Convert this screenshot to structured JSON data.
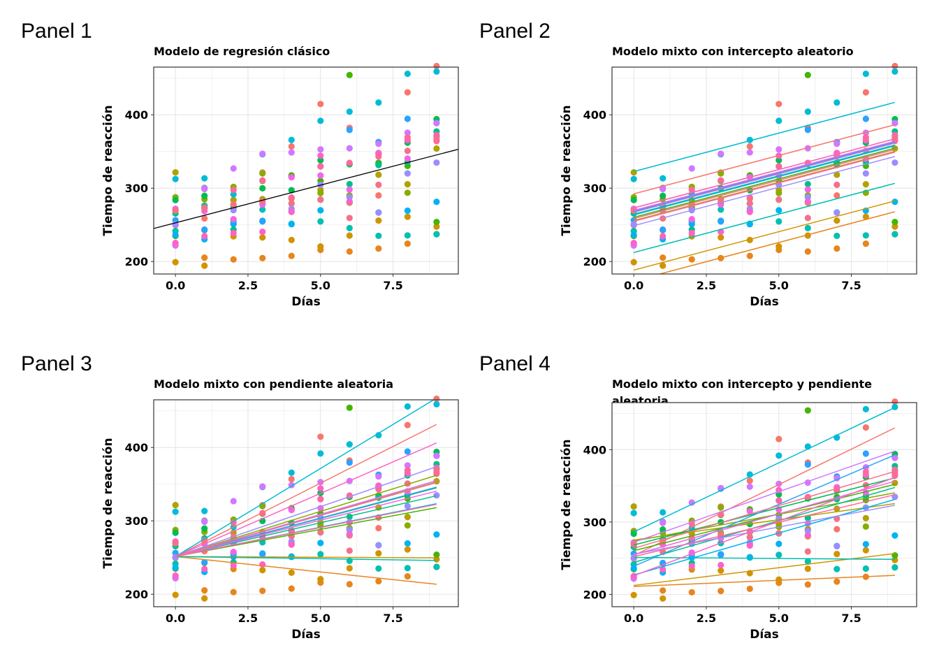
{
  "chart_data": [
    {
      "type": "scatter",
      "panel_label": "Panel 1",
      "title": "Modelo de regresión clásico",
      "xlabel": "Días",
      "ylabel": "Tiempo de reacción",
      "xlim": [
        -0.75,
        9.75
      ],
      "ylim": [
        183,
        465
      ],
      "xticks": [
        0,
        2.5,
        5,
        7.5
      ],
      "xtick_labels": [
        "0.0",
        "2.5",
        "5.0",
        "7.5"
      ],
      "yticks": [
        200,
        300,
        400
      ],
      "ytick_labels": [
        "200",
        "300",
        "400"
      ],
      "grid": true,
      "legend": "none",
      "points_note": "18 subjects x 10 days, colored by subject",
      "lines": [
        {
          "x": [
            -0.75,
            9.75
          ],
          "y": [
            245,
            353
          ],
          "color": "#000000"
        }
      ]
    },
    {
      "type": "scatter",
      "panel_label": "Panel 2",
      "title": "Modelo mixto con intercepto aleatorio",
      "xlabel": "Días",
      "ylabel": "Tiempo de reacción",
      "xlim": [
        -0.75,
        9.75
      ],
      "ylim": [
        183,
        465
      ],
      "xticks": [
        0,
        2.5,
        5,
        7.5
      ],
      "xtick_labels": [
        "0.0",
        "2.5",
        "5.0",
        "7.5"
      ],
      "yticks": [
        200,
        300,
        400
      ],
      "ytick_labels": [
        "200",
        "300",
        "400"
      ],
      "grid": true,
      "legend": "none",
      "model": "random_intercept",
      "slope": 10.47,
      "intercepts": [
        292.2,
        173.6,
        188.3,
        255.8,
        273.0,
        260.3,
        268.2,
        264.5,
        212.3,
        322.7,
        263.5,
        268.7,
        248.9,
        267.0,
        269.7,
        273.0,
        254.8,
        258.5
      ]
    },
    {
      "type": "scatter",
      "panel_label": "Panel 3",
      "title": "Modelo mixto con pendiente aleatoria",
      "xlabel": "Días",
      "ylabel": "Tiempo de reacción",
      "xlim": [
        -0.75,
        9.75
      ],
      "ylim": [
        183,
        465
      ],
      "xticks": [
        0,
        2.5,
        5,
        7.5
      ],
      "xtick_labels": [
        "0.0",
        "2.5",
        "5.0",
        "7.5"
      ],
      "yticks": [
        200,
        300,
        400
      ],
      "ytick_labels": [
        "200",
        "300",
        "400"
      ],
      "grid": true,
      "legend": "none",
      "model": "random_slope",
      "common_intercept": 251.4,
      "slopes": [
        20.0,
        -4.2,
        -0.2,
        11.3,
        12.3,
        7.4,
        10.4,
        9.2,
        -0.6,
        24.0,
        8.0,
        10.5,
        13.6,
        11.5,
        9.9,
        17.2,
        7.9,
        11.2
      ]
    },
    {
      "type": "scatter",
      "panel_label": "Panel 4",
      "title": "Modelo mixto con intercepto y pendiente\n aleatoria",
      "xlabel": "Días",
      "ylabel": "Tiempo de reacción",
      "xlim": [
        -0.75,
        9.75
      ],
      "ylim": [
        183,
        465
      ],
      "xticks": [
        0,
        2.5,
        5,
        7.5
      ],
      "xtick_labels": [
        "0.0",
        "2.5",
        "5.0",
        "7.5"
      ],
      "yticks": [
        200,
        300,
        400
      ],
      "ytick_labels": [
        "200",
        "300",
        "400"
      ],
      "grid": true,
      "legend": "none",
      "model": "random_intercept_and_slope",
      "intercepts": [
        253.7,
        211.0,
        212.4,
        275.1,
        273.7,
        260.4,
        268.2,
        244.2,
        251.1,
        286.3,
        226.8,
        238.9,
        255.6,
        272.0,
        254.7,
        225.8,
        252.2,
        263.7
      ],
      "slopes": [
        19.6,
        1.7,
        4.9,
        5.6,
        7.4,
        10.2,
        10.3,
        11.5,
        -0.3,
        19.1,
        11.6,
        17.1,
        7.5,
        14.0,
        11.3,
        15.1,
        9.5,
        11.8
      ]
    }
  ],
  "subjects": {
    "colors": [
      "#F8766D",
      "#E7851E",
      "#D09400",
      "#B2A100",
      "#89AC00",
      "#45B500",
      "#00BC51",
      "#00C087",
      "#00C0B2",
      "#00BCD6",
      "#00B3F2",
      "#29A3FF",
      "#9C8DFF",
      "#D277FF",
      "#F166E8",
      "#FF61C7",
      "#FF689E",
      "#F5718A"
    ],
    "reaction_times": [
      [
        249.6,
        258.7,
        250.8,
        321.4,
        356.9,
        414.7,
        382.2,
        290.1,
        430.6,
        466.4
      ],
      [
        222.7,
        205.3,
        202.9,
        204.7,
        207.7,
        215.9,
        213.6,
        217.7,
        224.3,
        237.3
      ],
      [
        199.1,
        194.3,
        234.3,
        232.8,
        229.3,
        220.5,
        235.4,
        255.8,
        261.0,
        247.5
      ],
      [
        321.5,
        300.4,
        283.9,
        285.1,
        285.8,
        297.6,
        280.2,
        318.3,
        305.3,
        354.0
      ],
      [
        287.6,
        285.0,
        301.8,
        320.1,
        316.3,
        293.3,
        290.1,
        334.8,
        293.7,
        371.6
      ],
      [
        234.9,
        242.8,
        272.9,
        309.8,
        317.5,
        309.9,
        454.2,
        346.8,
        330.3,
        253.9
      ],
      [
        283.8,
        289.6,
        276.8,
        299.8,
        297.2,
        338.1,
        332.6,
        333.4,
        362.0,
        394.0
      ],
      [
        265.5,
        276.2,
        243.4,
        254.7,
        279.0,
        284.2,
        305.5,
        331.5,
        335.7,
        377.3
      ],
      [
        241.6,
        273.9,
        254.5,
        270.8,
        251.5,
        254.6,
        245.5,
        235.0,
        235.6,
        237.2
      ],
      [
        312.4,
        313.4,
        291.6,
        346.1,
        365.7,
        391.8,
        404.3,
        416.7,
        455.9,
        458.9
      ],
      [
        236.1,
        230.3,
        251.3,
        254.9,
        250.8,
        269.8,
        281.6,
        266.9,
        269.3,
        281.4
      ],
      [
        256.3,
        243.5,
        256.3,
        255.5,
        268.9,
        329.7,
        379.4,
        362.9,
        394.5,
        389.0
      ],
      [
        250.5,
        300.0,
        269.9,
        280.6,
        271.8,
        304.6,
        287.7,
        266.6,
        320.1,
        334.8
      ],
      [
        221.7,
        298.8,
        326.9,
        346.9,
        348.7,
        352.8,
        354.4,
        360.5,
        375.6,
        388.5
      ],
      [
        271.9,
        268.7,
        257.7,
        277.7,
        314.8,
        317.2,
        298.1,
        348.1,
        340.3,
        366.5
      ],
      [
        225.3,
        234.5,
        238.9,
        240.5,
        267.5,
        344.2,
        281.1,
        347.6,
        365.2,
        372.2
      ],
      [
        269.4,
        273.5,
        297.6,
        310.6,
        287.2,
        329.6,
        334.5,
        343.2,
        369.1,
        364.1
      ],
      [
        269.8,
        272.4,
        277.9,
        281.8,
        279.2,
        284.5,
        259.3,
        304.6,
        350.8,
        369.5
      ]
    ]
  }
}
